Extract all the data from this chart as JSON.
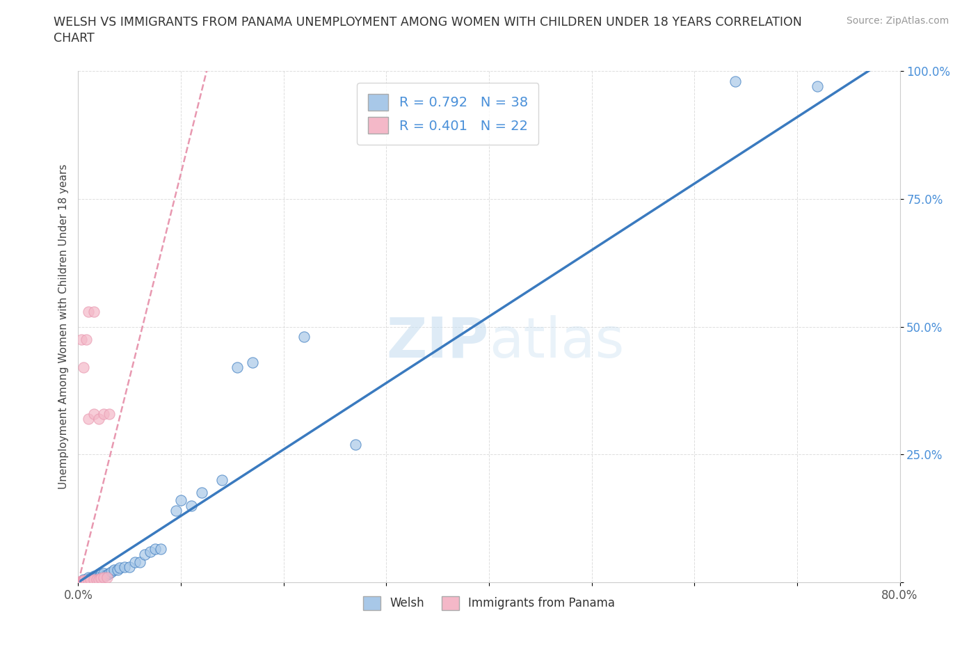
{
  "title_line1": "WELSH VS IMMIGRANTS FROM PANAMA UNEMPLOYMENT AMONG WOMEN WITH CHILDREN UNDER 18 YEARS CORRELATION",
  "title_line2": "CHART",
  "source": "Source: ZipAtlas.com",
  "ylabel": "Unemployment Among Women with Children Under 18 years",
  "xmin": 0.0,
  "xmax": 0.8,
  "ymin": 0.0,
  "ymax": 1.0,
  "welsh_R": 0.792,
  "welsh_N": 38,
  "panama_R": 0.401,
  "panama_N": 22,
  "welsh_color": "#a8c8e8",
  "panama_color": "#f4b8c8",
  "welsh_line_color": "#3a7abf",
  "panama_line_color": "#e898b0",
  "welsh_scatter": [
    [
      0.005,
      0.005
    ],
    [
      0.008,
      0.005
    ],
    [
      0.01,
      0.005
    ],
    [
      0.01,
      0.01
    ],
    [
      0.012,
      0.008
    ],
    [
      0.015,
      0.008
    ],
    [
      0.015,
      0.012
    ],
    [
      0.018,
      0.01
    ],
    [
      0.02,
      0.01
    ],
    [
      0.022,
      0.01
    ],
    [
      0.022,
      0.015
    ],
    [
      0.025,
      0.012
    ],
    [
      0.025,
      0.018
    ],
    [
      0.028,
      0.015
    ],
    [
      0.03,
      0.018
    ],
    [
      0.032,
      0.02
    ],
    [
      0.035,
      0.025
    ],
    [
      0.038,
      0.025
    ],
    [
      0.04,
      0.028
    ],
    [
      0.045,
      0.03
    ],
    [
      0.05,
      0.03
    ],
    [
      0.055,
      0.04
    ],
    [
      0.06,
      0.04
    ],
    [
      0.065,
      0.055
    ],
    [
      0.07,
      0.06
    ],
    [
      0.075,
      0.065
    ],
    [
      0.08,
      0.065
    ],
    [
      0.095,
      0.14
    ],
    [
      0.1,
      0.16
    ],
    [
      0.11,
      0.15
    ],
    [
      0.12,
      0.175
    ],
    [
      0.14,
      0.2
    ],
    [
      0.155,
      0.42
    ],
    [
      0.17,
      0.43
    ],
    [
      0.22,
      0.48
    ],
    [
      0.27,
      0.27
    ],
    [
      0.64,
      0.98
    ],
    [
      0.72,
      0.97
    ]
  ],
  "panama_scatter": [
    [
      0.002,
      0.002
    ],
    [
      0.004,
      0.003
    ],
    [
      0.006,
      0.004
    ],
    [
      0.008,
      0.003
    ],
    [
      0.01,
      0.004
    ],
    [
      0.012,
      0.005
    ],
    [
      0.015,
      0.005
    ],
    [
      0.018,
      0.006
    ],
    [
      0.02,
      0.006
    ],
    [
      0.022,
      0.008
    ],
    [
      0.025,
      0.01
    ],
    [
      0.028,
      0.01
    ],
    [
      0.01,
      0.32
    ],
    [
      0.015,
      0.33
    ],
    [
      0.02,
      0.32
    ],
    [
      0.025,
      0.33
    ],
    [
      0.03,
      0.33
    ],
    [
      0.005,
      0.42
    ],
    [
      0.01,
      0.53
    ],
    [
      0.015,
      0.53
    ],
    [
      0.003,
      0.475
    ],
    [
      0.008,
      0.475
    ]
  ],
  "watermark_zip": "ZIP",
  "watermark_atlas": "atlas",
  "background_color": "#ffffff",
  "grid_color": "#dddddd",
  "tick_label_color": "#4a90d9",
  "axis_color": "#cccccc"
}
